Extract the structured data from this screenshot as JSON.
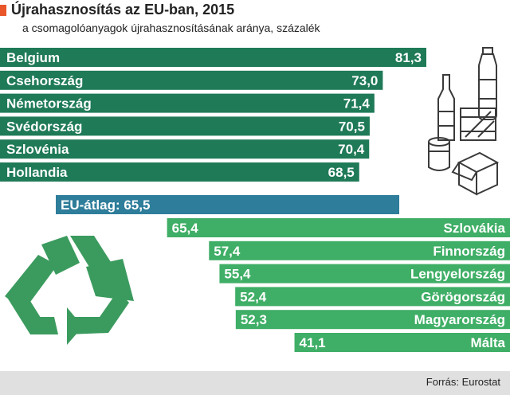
{
  "title": "Újrahasznosítás az EU-ban, 2015",
  "subtitle": "a csomagolóanyagok újrahasznosításának aránya, százalék",
  "source": "Forrás: Eurostat",
  "colors": {
    "accent": "#e8562a",
    "top": "#1f7a58",
    "average": "#2e7d9a",
    "bottom": "#3fae66",
    "icon": "#3a3a3a",
    "recycle": "#3b9b5e",
    "footer": "#e0e0e0"
  },
  "icons": [
    "bottle-icon",
    "glass-bottle-icon",
    "crate-icon",
    "can-icon",
    "box-icon",
    "recycle-icon"
  ],
  "chart_data": {
    "type": "bar",
    "title": "Újrahasznosítás az EU-ban, 2015",
    "subtitle": "a csomagolóanyagok újrahasznosításának aránya, százalék",
    "unit": "százalék",
    "top": [
      {
        "name": "Belgium",
        "value": 81.3,
        "label": "81,3"
      },
      {
        "name": "Csehország",
        "value": 73.0,
        "label": "73,0"
      },
      {
        "name": "Németország",
        "value": 71.4,
        "label": "71,4"
      },
      {
        "name": "Svédország",
        "value": 70.5,
        "label": "70,5"
      },
      {
        "name": "Szlovénia",
        "value": 70.4,
        "label": "70,4"
      },
      {
        "name": "Hollandia",
        "value": 68.5,
        "label": "68,5"
      }
    ],
    "average": {
      "name": "EU-átlag",
      "value": 65.5,
      "label": "EU-átlag: 65,5"
    },
    "bottom": [
      {
        "name": "Szlovákia",
        "value": 65.4,
        "label": "65,4"
      },
      {
        "name": "Finnország",
        "value": 57.4,
        "label": "57,4"
      },
      {
        "name": "Lengyelország",
        "value": 55.4,
        "label": "55,4"
      },
      {
        "name": "Görögország",
        "value": 52.4,
        "label": "52,4"
      },
      {
        "name": "Magyarország",
        "value": 52.3,
        "label": "52,3"
      },
      {
        "name": "Málta",
        "value": 41.1,
        "label": "41,1"
      }
    ]
  }
}
